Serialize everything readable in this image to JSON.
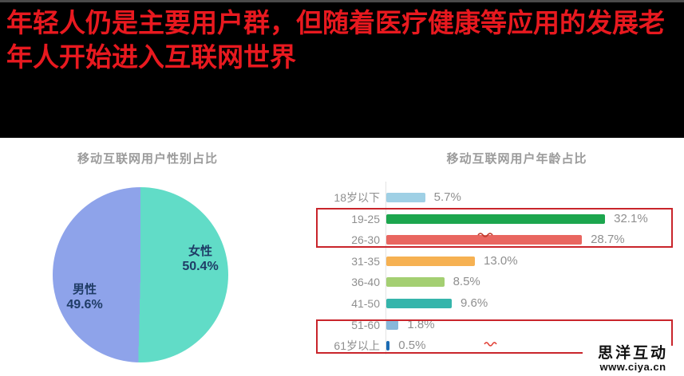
{
  "banner": {
    "title_line1": "年轻人仍是主要用户群，但随着医疗健康等应用的发展老",
    "title_line2": "年人开始进入互联网世界",
    "text_color": "#e8191f",
    "background": "#000000"
  },
  "watermark": {
    "line1": "思洋互动",
    "line2": "www.ciya.cn"
  },
  "colors": {
    "pie_male": "#8ea3ea",
    "pie_female": "#61dcc7",
    "pie_label_text": "#1f3c66",
    "chart_title": "#9b9b9b",
    "bar_label_text": "#8f8f8f",
    "highlight_box": "#c9252b",
    "axis_line": "#e3e3e3"
  },
  "chart_data": [
    {
      "type": "pie",
      "title": "移动互联网用户性别占比",
      "labels": [
        "男性",
        "女性"
      ],
      "values": [
        49.6,
        50.4
      ],
      "pct_labels": [
        "49.6%",
        "50.4%"
      ],
      "colors": [
        "#8ea3ea",
        "#61dcc7"
      ],
      "start_angle": "top",
      "direction": "clockwise",
      "legend_position": "labels-inside-slices"
    },
    {
      "type": "bar",
      "orientation": "horizontal",
      "title": "移动互联网用户年龄占比",
      "categories": [
        "18岁以下",
        "19-25",
        "26-30",
        "31-35",
        "36-40",
        "41-50",
        "51-60",
        "61岁以上"
      ],
      "values": [
        5.7,
        32.1,
        28.7,
        13.0,
        8.5,
        9.6,
        1.8,
        0.5
      ],
      "value_labels": [
        "5.7%",
        "32.1%",
        "28.7%",
        "13.0%",
        "8.5%",
        "9.6%",
        "1.8%",
        "0.5%"
      ],
      "bar_colors": [
        "#9fd0e5",
        "#1ca64e",
        "#e96660",
        "#f6b152",
        "#a4cf72",
        "#35b5ab",
        "#88b8da",
        "#1c6cb4"
      ],
      "xlim": [
        0,
        35
      ],
      "grid": false,
      "highlighted_groups": [
        [
          "19-25",
          "26-30"
        ],
        [
          "51-60",
          "61岁以上"
        ]
      ]
    }
  ]
}
